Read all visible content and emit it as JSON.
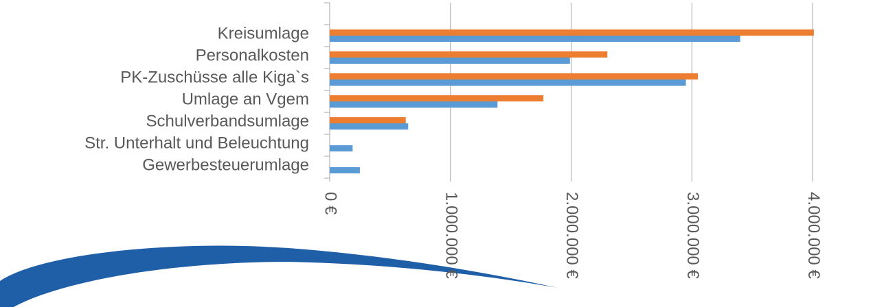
{
  "chart_data": {
    "type": "bar",
    "orientation": "horizontal",
    "categories": [
      null,
      "Kreisumlage",
      "Personalkosten",
      "PK-Zuschüsse alle Kiga`s",
      "Umlage an Vgem",
      "Schulverbandsumlage",
      "Str. Unterhalt und Beleuchtung",
      "Gewerbesteuerumlage"
    ],
    "series": [
      {
        "color": "#ed7d31",
        "values": [
          null,
          4010000,
          2300000,
          3050000,
          1770000,
          630000,
          null,
          null
        ]
      },
      {
        "color": "#5b9bd5",
        "values": [
          null,
          3400000,
          1990000,
          2950000,
          1390000,
          650000,
          190000,
          250000
        ]
      }
    ],
    "xlim": [
      0,
      4500000
    ],
    "xticks": [
      {
        "value": 0,
        "label": "0 €"
      },
      {
        "value": 1000000,
        "label": "1.000.000 €"
      },
      {
        "value": 2000000,
        "label": "2.000.000 €"
      },
      {
        "value": 3000000,
        "label": "3.000.000 €"
      },
      {
        "value": 4000000,
        "label": "4.000.000 €"
      }
    ],
    "grid": true
  }
}
